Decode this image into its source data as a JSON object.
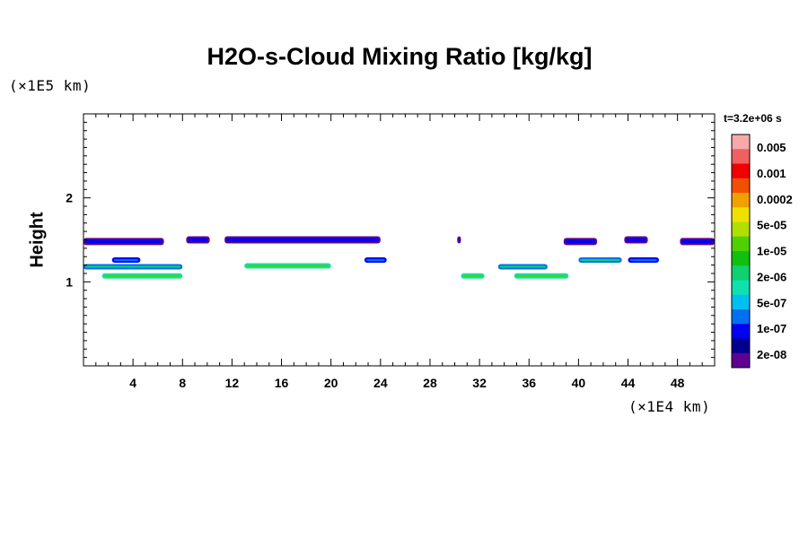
{
  "chart_data": {
    "type": "heatmap",
    "title": "H2O-s-Cloud Mixing Ratio [kg/kg]",
    "ylabel": "Height",
    "xlabel": "",
    "x_unit_label": "(×1E4 km)",
    "y_unit_label": "(×1E5 km)",
    "time_label": "t=3.2e+06 s",
    "xlim": [
      0,
      51
    ],
    "ylim": [
      0,
      3
    ],
    "x_ticks": [
      4,
      8,
      12,
      16,
      20,
      24,
      28,
      32,
      36,
      40,
      44,
      48
    ],
    "y_ticks": [
      1,
      2
    ],
    "colorbar": {
      "labels": [
        "0.005",
        "0.001",
        "0.0002",
        "5e-05",
        "1e-05",
        "2e-06",
        "5e-07",
        "1e-07",
        "2e-08"
      ],
      "colors": [
        "#f8a8a8",
        "#f06060",
        "#f00000",
        "#f05000",
        "#f0a000",
        "#f0e000",
        "#b0e000",
        "#50d000",
        "#10c010",
        "#10d070",
        "#10e0b0",
        "#00c0f0",
        "#0070f0",
        "#0000f0",
        "#000090",
        "#600090"
      ]
    },
    "features": [
      {
        "x": [
          0,
          6.5
        ],
        "y": 1.48,
        "level": "1e-07",
        "edge": "2e-08"
      },
      {
        "x": [
          8.3,
          10.2
        ],
        "y": 1.5,
        "level": "1e-07",
        "edge": "2e-08"
      },
      {
        "x": [
          11.4,
          24
        ],
        "y": 1.5,
        "level": "1e-07",
        "edge": "2e-08"
      },
      {
        "x": [
          30.2,
          30.5
        ],
        "y": 1.5,
        "level": "1e-07",
        "edge": "2e-08"
      },
      {
        "x": [
          38.8,
          41.5
        ],
        "y": 1.48,
        "level": "1e-07",
        "edge": "2e-08"
      },
      {
        "x": [
          43.7,
          45.6
        ],
        "y": 1.5,
        "level": "1e-07",
        "edge": "2e-08"
      },
      {
        "x": [
          48.2,
          51
        ],
        "y": 1.48,
        "level": "1e-07",
        "edge": "2e-08"
      },
      {
        "x": [
          0,
          8
        ],
        "y": 1.18,
        "level": "1e-05",
        "edge": "5e-07"
      },
      {
        "x": [
          2.3,
          4.6
        ],
        "y": 1.26,
        "level": "5e-07",
        "edge": "1e-07"
      },
      {
        "x": [
          1.5,
          8
        ],
        "y": 1.07,
        "level": "5e-05",
        "edge": "2e-06"
      },
      {
        "x": [
          13,
          20
        ],
        "y": 1.19,
        "level": "5e-05",
        "edge": "2e-06"
      },
      {
        "x": [
          22.7,
          24.5
        ],
        "y": 1.26,
        "level": "5e-07",
        "edge": "1e-07"
      },
      {
        "x": [
          30.5,
          32.4
        ],
        "y": 1.07,
        "level": "5e-05",
        "edge": "2e-06"
      },
      {
        "x": [
          33.5,
          37.5
        ],
        "y": 1.18,
        "level": "1e-05",
        "edge": "5e-07"
      },
      {
        "x": [
          34.8,
          39.2
        ],
        "y": 1.07,
        "level": "5e-05",
        "edge": "2e-06"
      },
      {
        "x": [
          40,
          43.5
        ],
        "y": 1.26,
        "level": "1e-05",
        "edge": "5e-07"
      },
      {
        "x": [
          44,
          46.5
        ],
        "y": 1.26,
        "level": "5e-07",
        "edge": "1e-07"
      }
    ]
  }
}
